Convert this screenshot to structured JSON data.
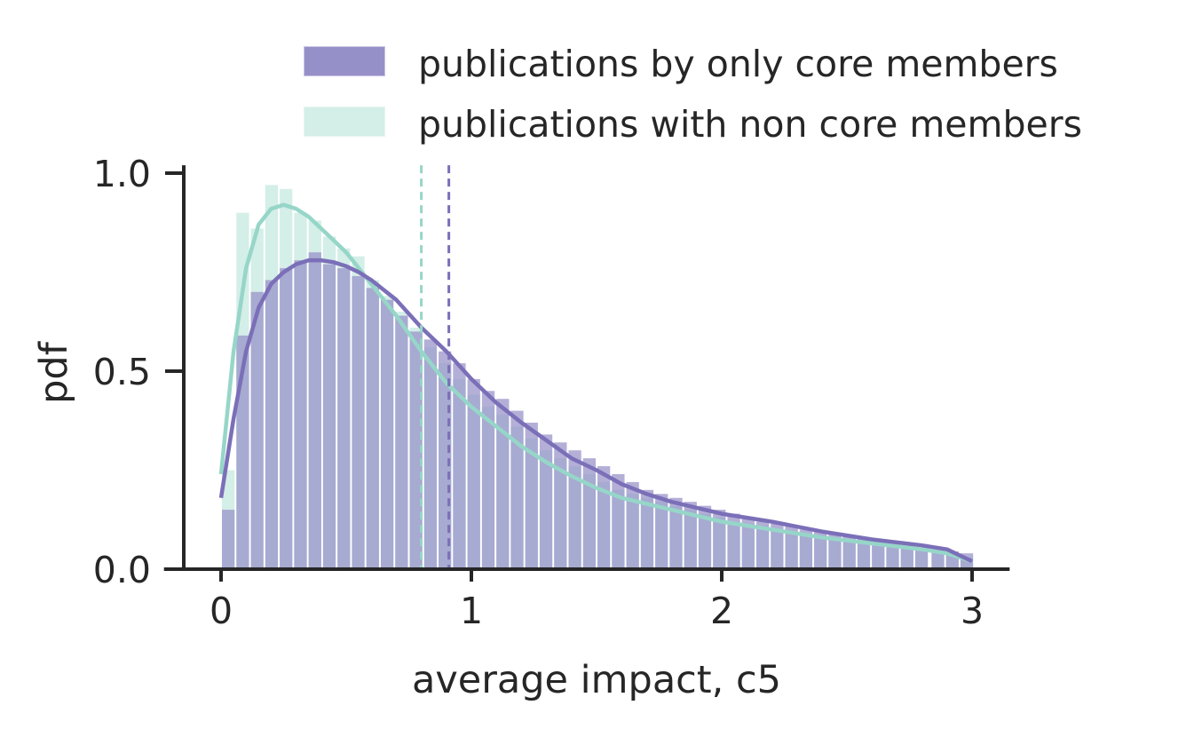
{
  "chart_data": {
    "type": "bar",
    "xlabel": "average impact, c5",
    "ylabel": "pdf",
    "xlim": [
      -0.15,
      3.15
    ],
    "ylim": [
      0,
      1.02
    ],
    "x_ticks": [
      {
        "value": 0,
        "label": "0"
      },
      {
        "value": 1,
        "label": "1"
      },
      {
        "value": 2,
        "label": "2"
      },
      {
        "value": 3,
        "label": "3"
      }
    ],
    "y_ticks": [
      {
        "value": 0.0,
        "label": "0.0"
      },
      {
        "value": 0.5,
        "label": "0.5"
      },
      {
        "value": 1.0,
        "label": "1.0"
      }
    ],
    "grid": false,
    "legend_position": "top-right",
    "bin_width": 0.0577,
    "bin_starts": [
      0.0,
      0.0577,
      0.1154,
      0.1731,
      0.2308,
      0.2885,
      0.3462,
      0.4038,
      0.4615,
      0.5192,
      0.5769,
      0.6346,
      0.6923,
      0.75,
      0.8077,
      0.8654,
      0.9231,
      0.9808,
      1.0385,
      1.0962,
      1.1538,
      1.2115,
      1.2692,
      1.3269,
      1.3846,
      1.4423,
      1.5,
      1.5577,
      1.6154,
      1.6731,
      1.7308,
      1.7885,
      1.8462,
      1.9038,
      1.9615,
      2.0192,
      2.0769,
      2.1346,
      2.1923,
      2.25,
      2.3077,
      2.3654,
      2.4231,
      2.4808,
      2.5385,
      2.5962,
      2.6538,
      2.7115,
      2.7692,
      2.8346,
      2.8923,
      2.95
    ],
    "series": [
      {
        "name": "publications by only core members",
        "color": "#7b6fb8",
        "bar_color": "#9590c8",
        "values": [
          0.15,
          0.59,
          0.7,
          0.73,
          0.76,
          0.78,
          0.8,
          0.77,
          0.76,
          0.74,
          0.71,
          0.68,
          0.64,
          0.6,
          0.58,
          0.55,
          0.52,
          0.48,
          0.45,
          0.43,
          0.4,
          0.37,
          0.34,
          0.32,
          0.3,
          0.28,
          0.26,
          0.24,
          0.22,
          0.2,
          0.19,
          0.18,
          0.17,
          0.16,
          0.15,
          0.14,
          0.13,
          0.12,
          0.115,
          0.11,
          0.1,
          0.095,
          0.09,
          0.085,
          0.08,
          0.07,
          0.065,
          0.06,
          0.055,
          0.05,
          0.045,
          0.04
        ],
        "kde": [
          [
            0.0,
            0.18
          ],
          [
            0.05,
            0.38
          ],
          [
            0.1,
            0.55
          ],
          [
            0.15,
            0.66
          ],
          [
            0.2,
            0.72
          ],
          [
            0.25,
            0.75
          ],
          [
            0.3,
            0.77
          ],
          [
            0.35,
            0.78
          ],
          [
            0.4,
            0.78
          ],
          [
            0.45,
            0.775
          ],
          [
            0.5,
            0.765
          ],
          [
            0.55,
            0.75
          ],
          [
            0.6,
            0.73
          ],
          [
            0.7,
            0.68
          ],
          [
            0.8,
            0.61
          ],
          [
            0.9,
            0.55
          ],
          [
            1.0,
            0.48
          ],
          [
            1.1,
            0.42
          ],
          [
            1.2,
            0.37
          ],
          [
            1.3,
            0.325
          ],
          [
            1.4,
            0.28
          ],
          [
            1.5,
            0.25
          ],
          [
            1.6,
            0.215
          ],
          [
            1.7,
            0.19
          ],
          [
            1.8,
            0.17
          ],
          [
            1.9,
            0.155
          ],
          [
            2.0,
            0.14
          ],
          [
            2.2,
            0.12
          ],
          [
            2.4,
            0.095
          ],
          [
            2.6,
            0.075
          ],
          [
            2.8,
            0.06
          ],
          [
            2.9,
            0.05
          ],
          [
            3.0,
            0.02
          ]
        ],
        "mean": 0.91
      },
      {
        "name": "publications with non core members",
        "color": "#96d6c8",
        "bar_color": "#d4eee8",
        "values": [
          0.25,
          0.9,
          0.86,
          0.97,
          0.96,
          0.9,
          0.88,
          0.84,
          0.81,
          0.79,
          0.73,
          0.69,
          0.65,
          0.61,
          0.56,
          0.52,
          0.48,
          0.44,
          0.41,
          0.39,
          0.36,
          0.33,
          0.3,
          0.28,
          0.26,
          0.24,
          0.22,
          0.2,
          0.19,
          0.18,
          0.17,
          0.16,
          0.15,
          0.14,
          0.13,
          0.12,
          0.115,
          0.11,
          0.1,
          0.095,
          0.09,
          0.085,
          0.08,
          0.075,
          0.07,
          0.065,
          0.06,
          0.055,
          0.05,
          0.045,
          0.04,
          0.03
        ],
        "kde": [
          [
            0.0,
            0.24
          ],
          [
            0.05,
            0.55
          ],
          [
            0.1,
            0.76
          ],
          [
            0.15,
            0.87
          ],
          [
            0.2,
            0.91
          ],
          [
            0.25,
            0.92
          ],
          [
            0.3,
            0.91
          ],
          [
            0.35,
            0.89
          ],
          [
            0.4,
            0.86
          ],
          [
            0.45,
            0.83
          ],
          [
            0.5,
            0.8
          ],
          [
            0.6,
            0.72
          ],
          [
            0.7,
            0.64
          ],
          [
            0.8,
            0.55
          ],
          [
            0.9,
            0.47
          ],
          [
            1.0,
            0.41
          ],
          [
            1.1,
            0.36
          ],
          [
            1.2,
            0.31
          ],
          [
            1.3,
            0.27
          ],
          [
            1.4,
            0.235
          ],
          [
            1.5,
            0.205
          ],
          [
            1.6,
            0.18
          ],
          [
            1.7,
            0.165
          ],
          [
            1.8,
            0.15
          ],
          [
            1.9,
            0.135
          ],
          [
            2.0,
            0.12
          ],
          [
            2.2,
            0.1
          ],
          [
            2.4,
            0.08
          ],
          [
            2.6,
            0.065
          ],
          [
            2.8,
            0.05
          ],
          [
            2.9,
            0.04
          ],
          [
            3.0,
            0.02
          ]
        ],
        "mean": 0.8
      }
    ]
  }
}
